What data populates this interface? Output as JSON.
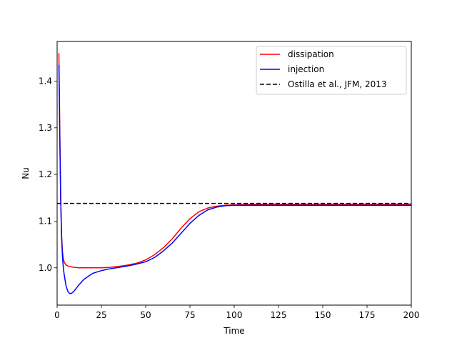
{
  "chart_data": {
    "type": "line",
    "title": "",
    "xlabel": "Time",
    "ylabel": "Nu",
    "xlim": [
      0,
      200
    ],
    "ylim": [
      0.92,
      1.485
    ],
    "xticks": [
      0,
      25,
      50,
      75,
      100,
      125,
      150,
      175,
      200
    ],
    "yticks": [
      1.0,
      1.1,
      1.2,
      1.3,
      1.4
    ],
    "xtick_labels": [
      "0",
      "25",
      "50",
      "75",
      "100",
      "125",
      "150",
      "175",
      "200"
    ],
    "ytick_labels": [
      "1.0",
      "1.1",
      "1.2",
      "1.3",
      "1.4"
    ],
    "grid": false,
    "legend_position": "top-right",
    "series": [
      {
        "name": "dissipation",
        "color": "#ff0000",
        "style": "solid",
        "x": [
          1,
          1.5,
          2,
          2.5,
          3,
          3.5,
          4,
          5,
          6,
          7,
          8,
          10,
          12,
          15,
          20,
          25,
          30,
          35,
          40,
          45,
          50,
          55,
          60,
          65,
          70,
          75,
          80,
          85,
          90,
          95,
          100,
          110,
          120,
          140,
          160,
          180,
          200
        ],
        "y": [
          1.46,
          1.3,
          1.15,
          1.07,
          1.035,
          1.02,
          1.012,
          1.006,
          1.004,
          1.003,
          1.002,
          1.001,
          1.0,
          1.0,
          1.0,
          1.0,
          1.001,
          1.003,
          1.006,
          1.01,
          1.017,
          1.028,
          1.043,
          1.062,
          1.085,
          1.105,
          1.12,
          1.128,
          1.132,
          1.134,
          1.135,
          1.136,
          1.136,
          1.136,
          1.136,
          1.136,
          1.136
        ]
      },
      {
        "name": "injection",
        "color": "#0000ff",
        "style": "solid",
        "x": [
          1,
          1.5,
          2,
          2.5,
          3,
          3.5,
          4,
          5,
          6,
          7,
          8,
          9,
          10,
          12,
          15,
          20,
          25,
          30,
          35,
          40,
          45,
          50,
          55,
          60,
          65,
          70,
          75,
          80,
          85,
          90,
          95,
          100,
          110,
          120,
          140,
          160,
          180,
          200
        ],
        "y": [
          1.435,
          1.28,
          1.15,
          1.07,
          1.025,
          1.0,
          0.985,
          0.962,
          0.95,
          0.945,
          0.945,
          0.948,
          0.952,
          0.962,
          0.975,
          0.988,
          0.994,
          0.998,
          1.001,
          1.004,
          1.008,
          1.013,
          1.022,
          1.036,
          1.053,
          1.074,
          1.095,
          1.112,
          1.124,
          1.13,
          1.133,
          1.134,
          1.134,
          1.134,
          1.134,
          1.134,
          1.134,
          1.134
        ]
      },
      {
        "name": "Ostilla et al., JFM, 2013",
        "color": "#000000",
        "style": "dashed",
        "x": [
          0,
          200
        ],
        "y": [
          1.138,
          1.138
        ]
      }
    ]
  }
}
